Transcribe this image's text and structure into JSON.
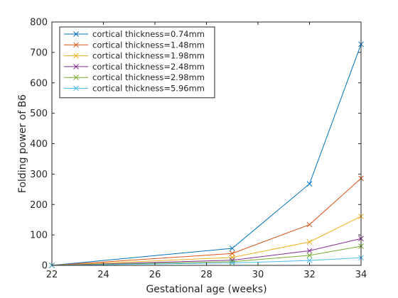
{
  "chart_data": {
    "type": "line",
    "title": "",
    "xlabel": "Gestational age (weeks)",
    "ylabel": "Folding power of B6",
    "xlim": [
      22,
      34
    ],
    "ylim": [
      0,
      800
    ],
    "xticks": [
      22,
      24,
      26,
      28,
      30,
      32,
      34
    ],
    "yticks": [
      0,
      100,
      200,
      300,
      400,
      500,
      600,
      700,
      800
    ],
    "grid": false,
    "legend_position": "top-left",
    "x": [
      22,
      29,
      32,
      34
    ],
    "series": [
      {
        "name": "cortical thickness=0.74mm",
        "color": "#0072BD",
        "marker": "x",
        "values": [
          0,
          56,
          268,
          727
        ]
      },
      {
        "name": "cortical thickness=1.48mm",
        "color": "#D95319",
        "marker": "x",
        "values": [
          0,
          39,
          134,
          286
        ]
      },
      {
        "name": "cortical thickness=1.98mm",
        "color": "#EDB120",
        "marker": "x",
        "values": [
          0,
          26,
          77,
          161
        ]
      },
      {
        "name": "cortical thickness=2.48mm",
        "color": "#7E2F8E",
        "marker": "x",
        "values": [
          0,
          17,
          48,
          88
        ]
      },
      {
        "name": "cortical thickness=2.98mm",
        "color": "#77AC30",
        "marker": "x",
        "values": [
          0,
          12,
          33,
          63
        ]
      },
      {
        "name": "cortical thickness=5.96mm",
        "color": "#4DBEEE",
        "marker": "x",
        "values": [
          0,
          8,
          16,
          25
        ]
      }
    ]
  }
}
